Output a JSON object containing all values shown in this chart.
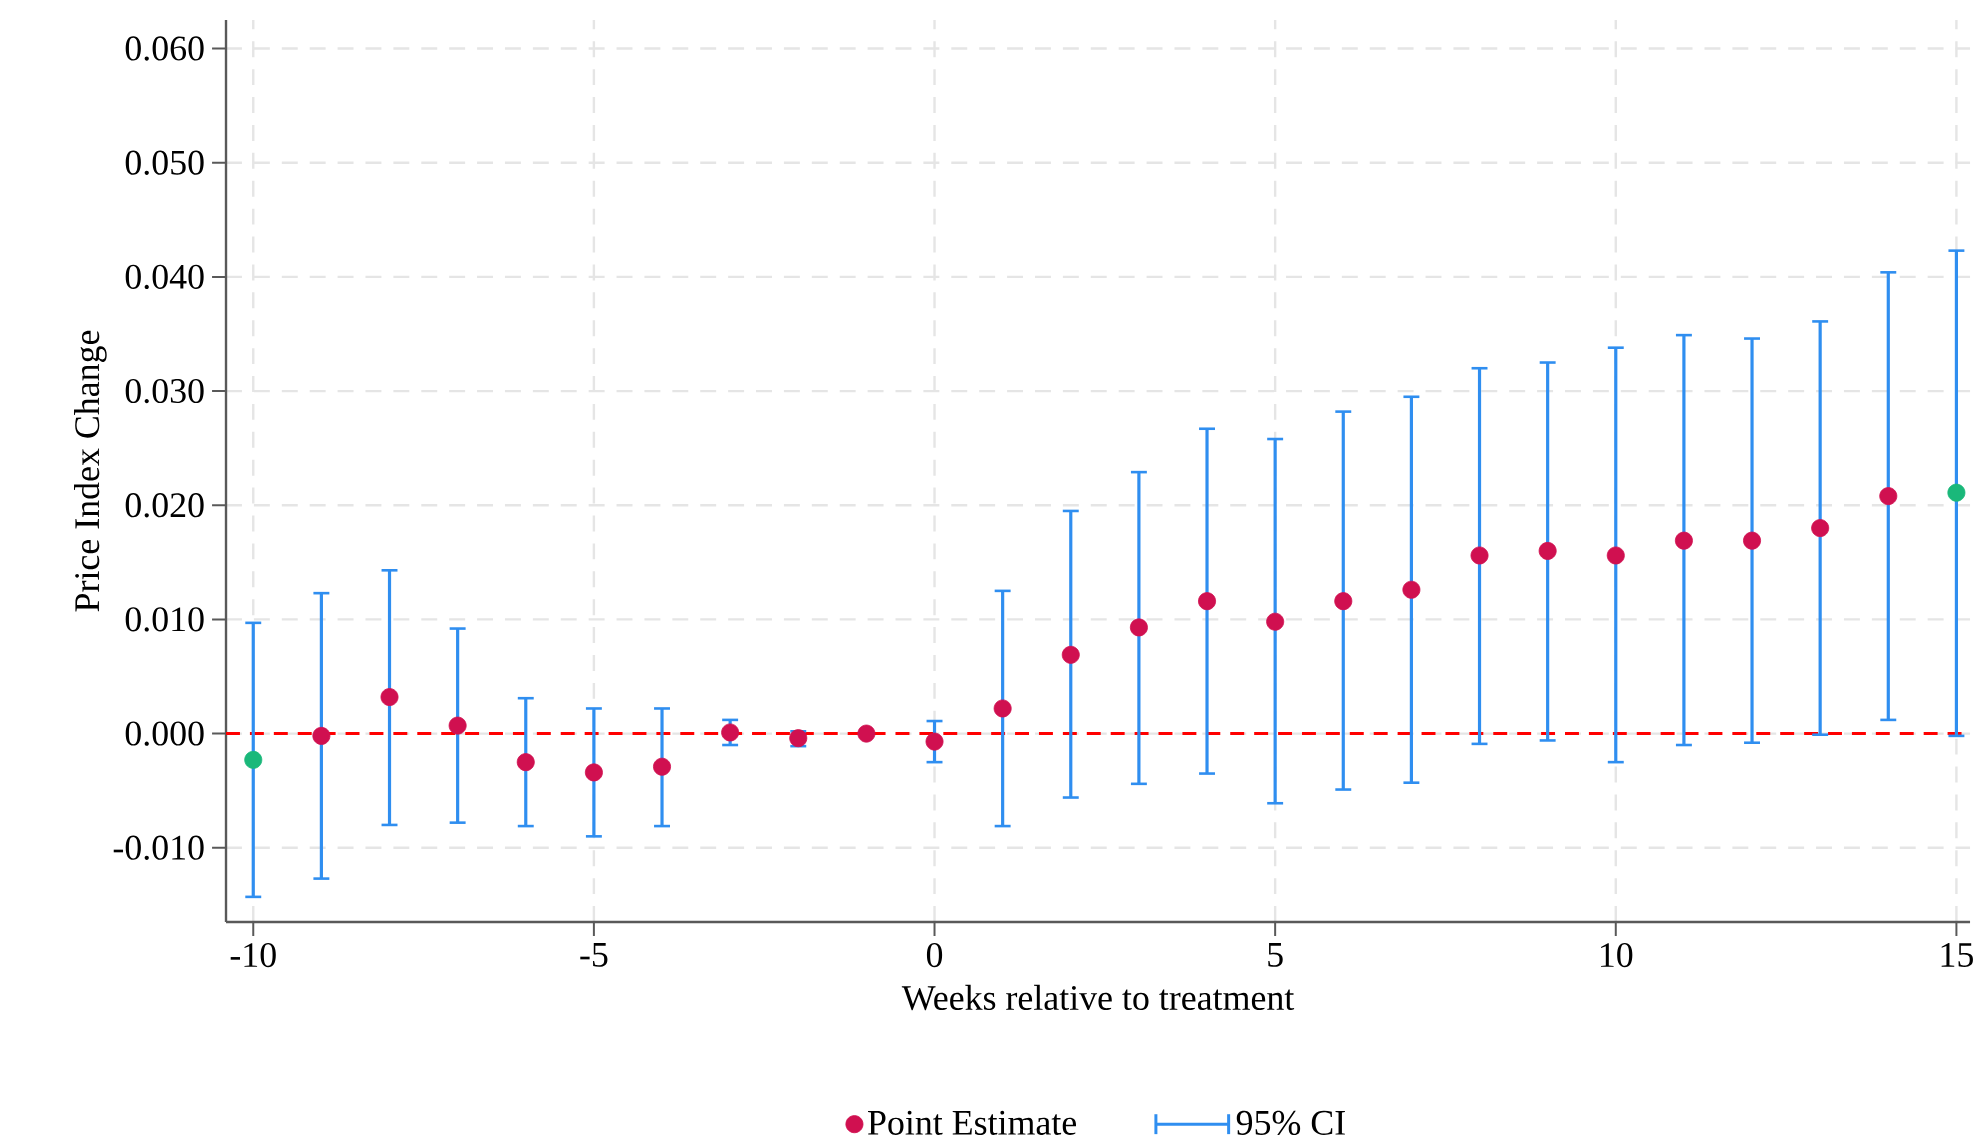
{
  "chart_data": {
    "type": "scatter",
    "xlabel": "Weeks relative to treatment",
    "ylabel": "Price Index Change",
    "x": [
      -10,
      -9,
      -8,
      -7,
      -6,
      -5,
      -4,
      -3,
      -2,
      -1,
      0,
      1,
      2,
      3,
      4,
      5,
      6,
      7,
      8,
      9,
      10,
      11,
      12,
      13,
      14,
      15
    ],
    "series": [
      {
        "name": "Point Estimate",
        "marker": "circle",
        "color": "#d01050",
        "colors": [
          "#1ab87a",
          "#d01050",
          "#d01050",
          "#d01050",
          "#d01050",
          "#d01050",
          "#d01050",
          "#d01050",
          "#d01050",
          "#d01050",
          "#d01050",
          "#d01050",
          "#d01050",
          "#d01050",
          "#d01050",
          "#d01050",
          "#d01050",
          "#d01050",
          "#d01050",
          "#d01050",
          "#d01050",
          "#d01050",
          "#d01050",
          "#d01050",
          "#d01050",
          "#1ab87a"
        ],
        "values": [
          -0.0023,
          -0.0002,
          0.0032,
          0.0007,
          -0.0025,
          -0.0034,
          -0.0029,
          0.0001,
          -0.0004,
          0.0,
          -0.0007,
          0.0022,
          0.0069,
          0.0093,
          0.0116,
          0.0098,
          0.0116,
          0.0126,
          0.0156,
          0.016,
          0.0156,
          0.0169,
          0.0169,
          0.018,
          0.0208,
          0.0211
        ],
        "errors": [
          [
            -0.0143,
            0.0097
          ],
          [
            -0.0127,
            0.0123
          ],
          [
            -0.008,
            0.0143
          ],
          [
            -0.0078,
            0.0092
          ],
          [
            -0.0081,
            0.0031
          ],
          [
            -0.009,
            0.0022
          ],
          [
            -0.0081,
            0.0022
          ],
          [
            -0.001,
            0.0012
          ],
          [
            -0.0011,
            0.0002
          ],
          null,
          [
            -0.0025,
            0.0011
          ],
          [
            -0.0081,
            0.0125
          ],
          [
            -0.0056,
            0.0195
          ],
          [
            -0.0044,
            0.0229
          ],
          [
            -0.0035,
            0.0267
          ],
          [
            -0.0061,
            0.0258
          ],
          [
            -0.0049,
            0.0282
          ],
          [
            -0.0043,
            0.0295
          ],
          [
            -0.0009,
            0.032
          ],
          [
            -0.0006,
            0.0325
          ],
          [
            -0.0025,
            0.0338
          ],
          [
            -0.001,
            0.0349
          ],
          [
            -0.0008,
            0.0346
          ],
          [
            -0.0001,
            0.0361
          ],
          [
            0.0012,
            0.0404
          ],
          [
            -0.0002,
            0.0423
          ]
        ]
      },
      {
        "name": "95% CI",
        "marker": "none",
        "color": "#2f8ef0",
        "values": [
          null,
          null,
          null,
          null,
          null,
          null,
          null,
          null,
          null,
          null,
          null,
          null,
          null,
          null,
          null,
          null,
          null,
          null,
          null,
          null,
          null,
          null,
          null,
          null,
          null,
          null
        ]
      }
    ],
    "xlim": [
      -10.4,
      15.2
    ],
    "ylim": [
      -0.0165,
      0.0625
    ],
    "xticks": [
      -10,
      -5,
      0,
      5,
      10,
      15
    ],
    "yticks": [
      {
        "value": -0.01,
        "label": "-0.010"
      },
      {
        "value": 0,
        "label": "0.000"
      },
      {
        "value": 0.01,
        "label": "0.010"
      },
      {
        "value": 0.02,
        "label": "0.020"
      },
      {
        "value": 0.03,
        "label": "0.030"
      },
      {
        "value": 0.04,
        "label": "0.040"
      },
      {
        "value": 0.05,
        "label": "0.050"
      },
      {
        "value": 0.06,
        "label": "0.060"
      }
    ],
    "ref_lines": [
      {
        "axis": "y",
        "value": 0,
        "color": "#ff0000",
        "line_style": "dashed"
      }
    ],
    "grid": true,
    "legend": "bottom"
  }
}
